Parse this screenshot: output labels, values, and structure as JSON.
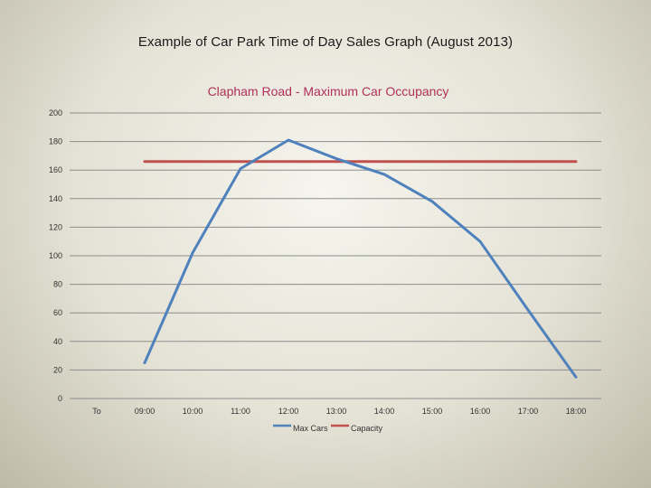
{
  "page": {
    "title": "Example of Car Park Time of Day Sales Graph (August 2013)"
  },
  "chart_data": {
    "type": "line",
    "title": "Clapham Road - Maximum Car Occupancy",
    "title_color": "#b0305a",
    "categories": [
      "To",
      "09:00",
      "10:00",
      "11:00",
      "12:00",
      "13:00",
      "14:00",
      "15:00",
      "16:00",
      "17:00",
      "18:00"
    ],
    "ylim": [
      0,
      200
    ],
    "yticks": [
      0,
      20,
      40,
      60,
      80,
      100,
      120,
      140,
      160,
      180,
      200
    ],
    "grid": true,
    "legend_position": "bottom",
    "series": [
      {
        "name": "Max Cars",
        "color": "#4f81bd",
        "values": [
          null,
          25,
          102,
          161,
          181,
          168,
          157,
          138,
          110,
          62,
          15
        ]
      },
      {
        "name": "Capacity",
        "color": "#c0504d",
        "values": [
          null,
          166,
          166,
          166,
          166,
          166,
          166,
          166,
          166,
          166,
          166
        ]
      }
    ]
  }
}
